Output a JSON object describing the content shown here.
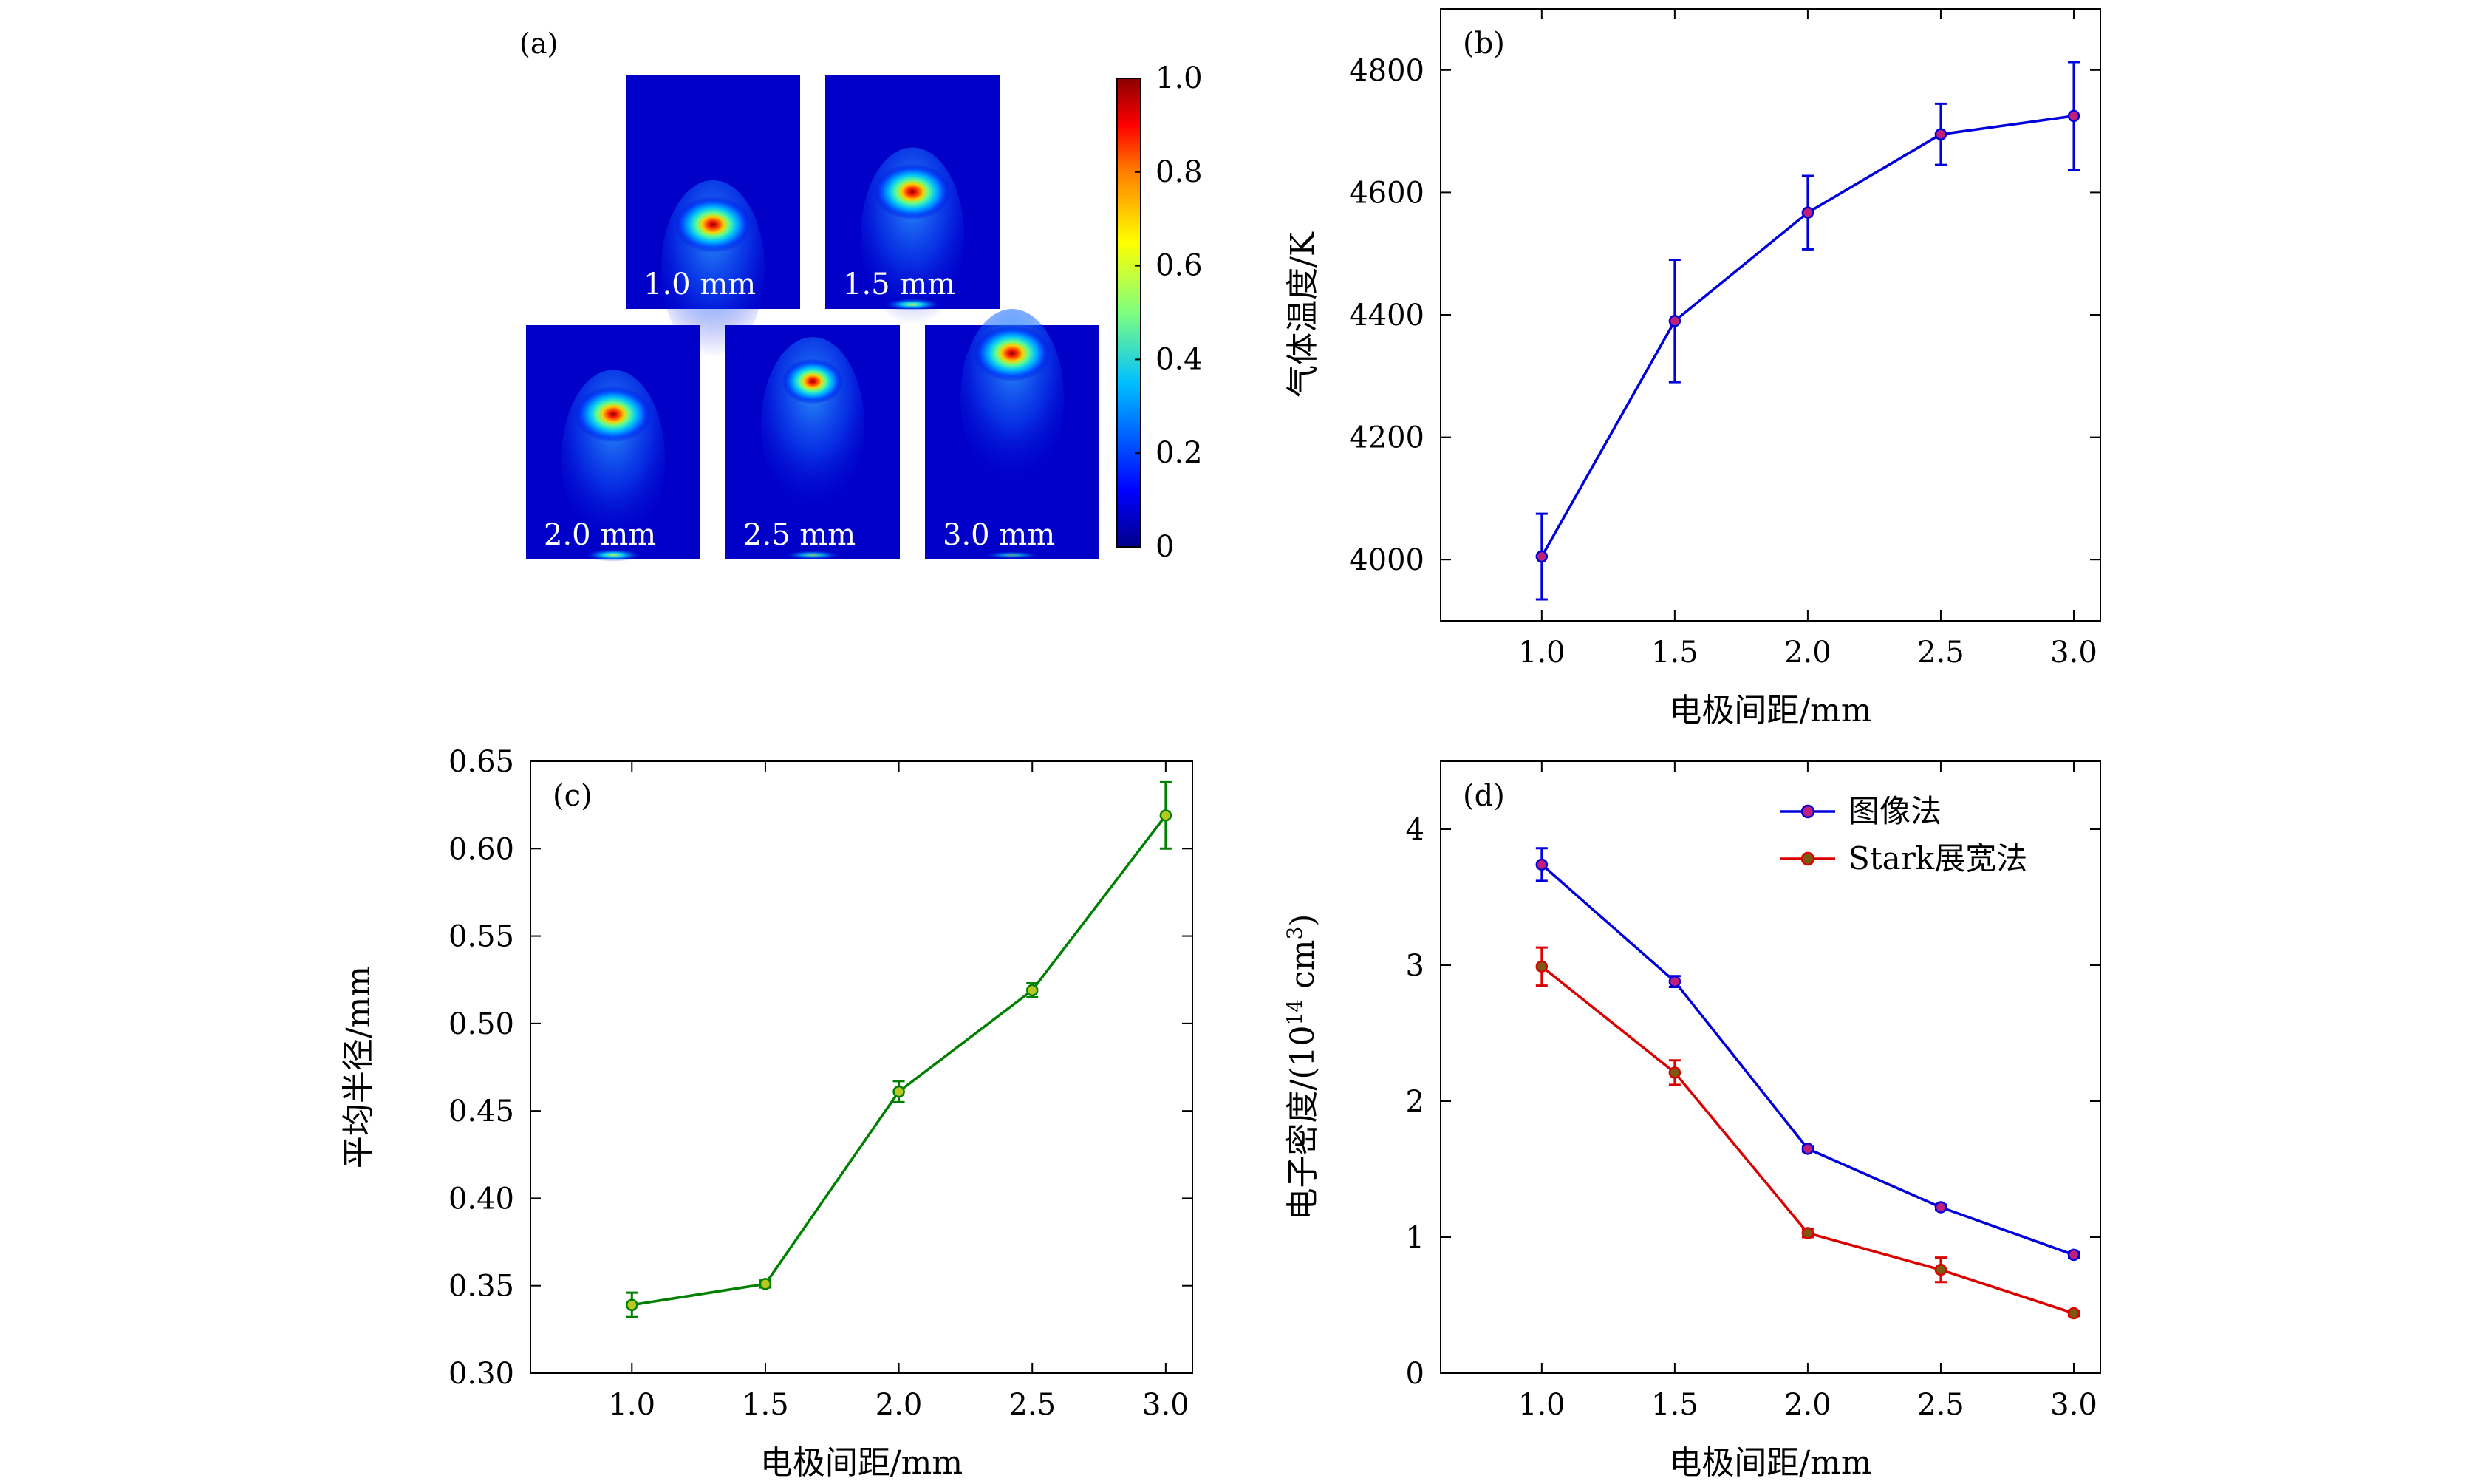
{
  "figure": {
    "panel_a": {
      "label": "(a)",
      "maps": [
        {
          "label": "1.0 mm",
          "hotspot": {
            "row_frac": 0.64,
            "strength": 1.0
          },
          "bottom_glow": 0.0
        },
        {
          "label": "1.5 mm",
          "hotspot": {
            "row_frac": 0.5,
            "strength": 1.0
          },
          "bottom_glow": 0.45
        },
        {
          "label": "2.0 mm",
          "hotspot": {
            "row_frac": 0.38,
            "strength": 1.0
          },
          "bottom_glow": 0.45
        },
        {
          "label": "2.5 mm",
          "hotspot": {
            "row_frac": 0.24,
            "strength": 0.75
          },
          "bottom_glow": 0.25
        },
        {
          "label": "3.0 mm",
          "hotspot": {
            "row_frac": 0.12,
            "strength": 1.0
          },
          "bottom_glow": 0.12
        }
      ],
      "colorbar": {
        "ticks": [
          "1.0",
          "0.8",
          "0.6",
          "0.4",
          "0.2",
          "0"
        ],
        "min": 0,
        "max": 1.0
      },
      "colors": [
        "#00008b",
        "#0000ff",
        "#00bfff",
        "#7fff7f",
        "#ffff00",
        "#ff7f00",
        "#ff0000",
        "#8b0000"
      ]
    }
  },
  "chart_data": [
    {
      "id": "b",
      "label": "(b)",
      "type": "line",
      "xlabel": "电极间距/mm",
      "ylabel": "气体温度/K",
      "x": [
        1.0,
        1.5,
        2.0,
        2.5,
        3.0
      ],
      "xlim": [
        0.62,
        3.1
      ],
      "ylim": [
        3900,
        4900
      ],
      "xticks": [
        1.0,
        1.5,
        2.0,
        2.5,
        3.0
      ],
      "xtick_labels": [
        "1.0",
        "1.5",
        "2.0",
        "2.5",
        "3.0"
      ],
      "yticks": [
        4000,
        4200,
        4400,
        4600,
        4800
      ],
      "ytick_labels": [
        "4000",
        "4200",
        "4400",
        "4600",
        "4800"
      ],
      "series": [
        {
          "name": "",
          "color": "#0000dd",
          "marker_fill": "#c0207a",
          "values": [
            4005,
            4390,
            4567,
            4695,
            4725
          ],
          "errors": [
            70,
            100,
            60,
            50,
            88
          ]
        }
      ]
    },
    {
      "id": "c",
      "label": "(c)",
      "type": "line",
      "xlabel": "电极间距/mm",
      "ylabel": "平均半径/mm",
      "x": [
        1.0,
        1.5,
        2.0,
        2.5,
        3.0
      ],
      "xlim": [
        0.62,
        3.1
      ],
      "ylim": [
        0.3,
        0.65
      ],
      "xticks": [
        1.0,
        1.5,
        2.0,
        2.5,
        3.0
      ],
      "xtick_labels": [
        "1.0",
        "1.5",
        "2.0",
        "2.5",
        "3.0"
      ],
      "yticks": [
        0.3,
        0.35,
        0.4,
        0.45,
        0.5,
        0.55,
        0.6,
        0.65
      ],
      "ytick_labels": [
        "0.30",
        "0.35",
        "0.40",
        "0.45",
        "0.50",
        "0.55",
        "0.60",
        "0.65"
      ],
      "series": [
        {
          "name": "",
          "color": "#008000",
          "marker_fill": "#b8c820",
          "values": [
            0.339,
            0.351,
            0.461,
            0.519,
            0.619
          ],
          "errors": [
            0.007,
            0.002,
            0.006,
            0.004,
            0.019
          ]
        }
      ]
    },
    {
      "id": "d",
      "label": "(d)",
      "type": "line",
      "xlabel": "电极间距/mm",
      "ylabel": "电子密度/(10",
      "ylabel_sup": "14",
      "ylabel_tail": " cm",
      "ylabel_sup2": "3",
      "ylabel_end": ")",
      "x": [
        1.0,
        1.5,
        2.0,
        2.5,
        3.0
      ],
      "xlim": [
        0.62,
        3.1
      ],
      "ylim": [
        0,
        4.5
      ],
      "xticks": [
        1.0,
        1.5,
        2.0,
        2.5,
        3.0
      ],
      "xtick_labels": [
        "1.0",
        "1.5",
        "2.0",
        "2.5",
        "3.0"
      ],
      "yticks": [
        0,
        1,
        2,
        3,
        4
      ],
      "ytick_labels": [
        "0",
        "1",
        "2",
        "3",
        "4"
      ],
      "legend_position": "top-right",
      "series": [
        {
          "name": "图像法",
          "color": "#0000dd",
          "marker_fill": "#c0207a",
          "values": [
            3.74,
            2.88,
            1.65,
            1.22,
            0.87
          ],
          "errors": [
            0.12,
            0.04,
            0.02,
            0.02,
            0.02
          ]
        },
        {
          "name": "Stark展宽法",
          "color": "#dd0000",
          "marker_fill": "#7a5a10",
          "values": [
            2.99,
            2.21,
            1.03,
            0.76,
            0.44
          ],
          "errors": [
            0.14,
            0.09,
            0.03,
            0.09,
            0.02
          ]
        }
      ]
    }
  ]
}
